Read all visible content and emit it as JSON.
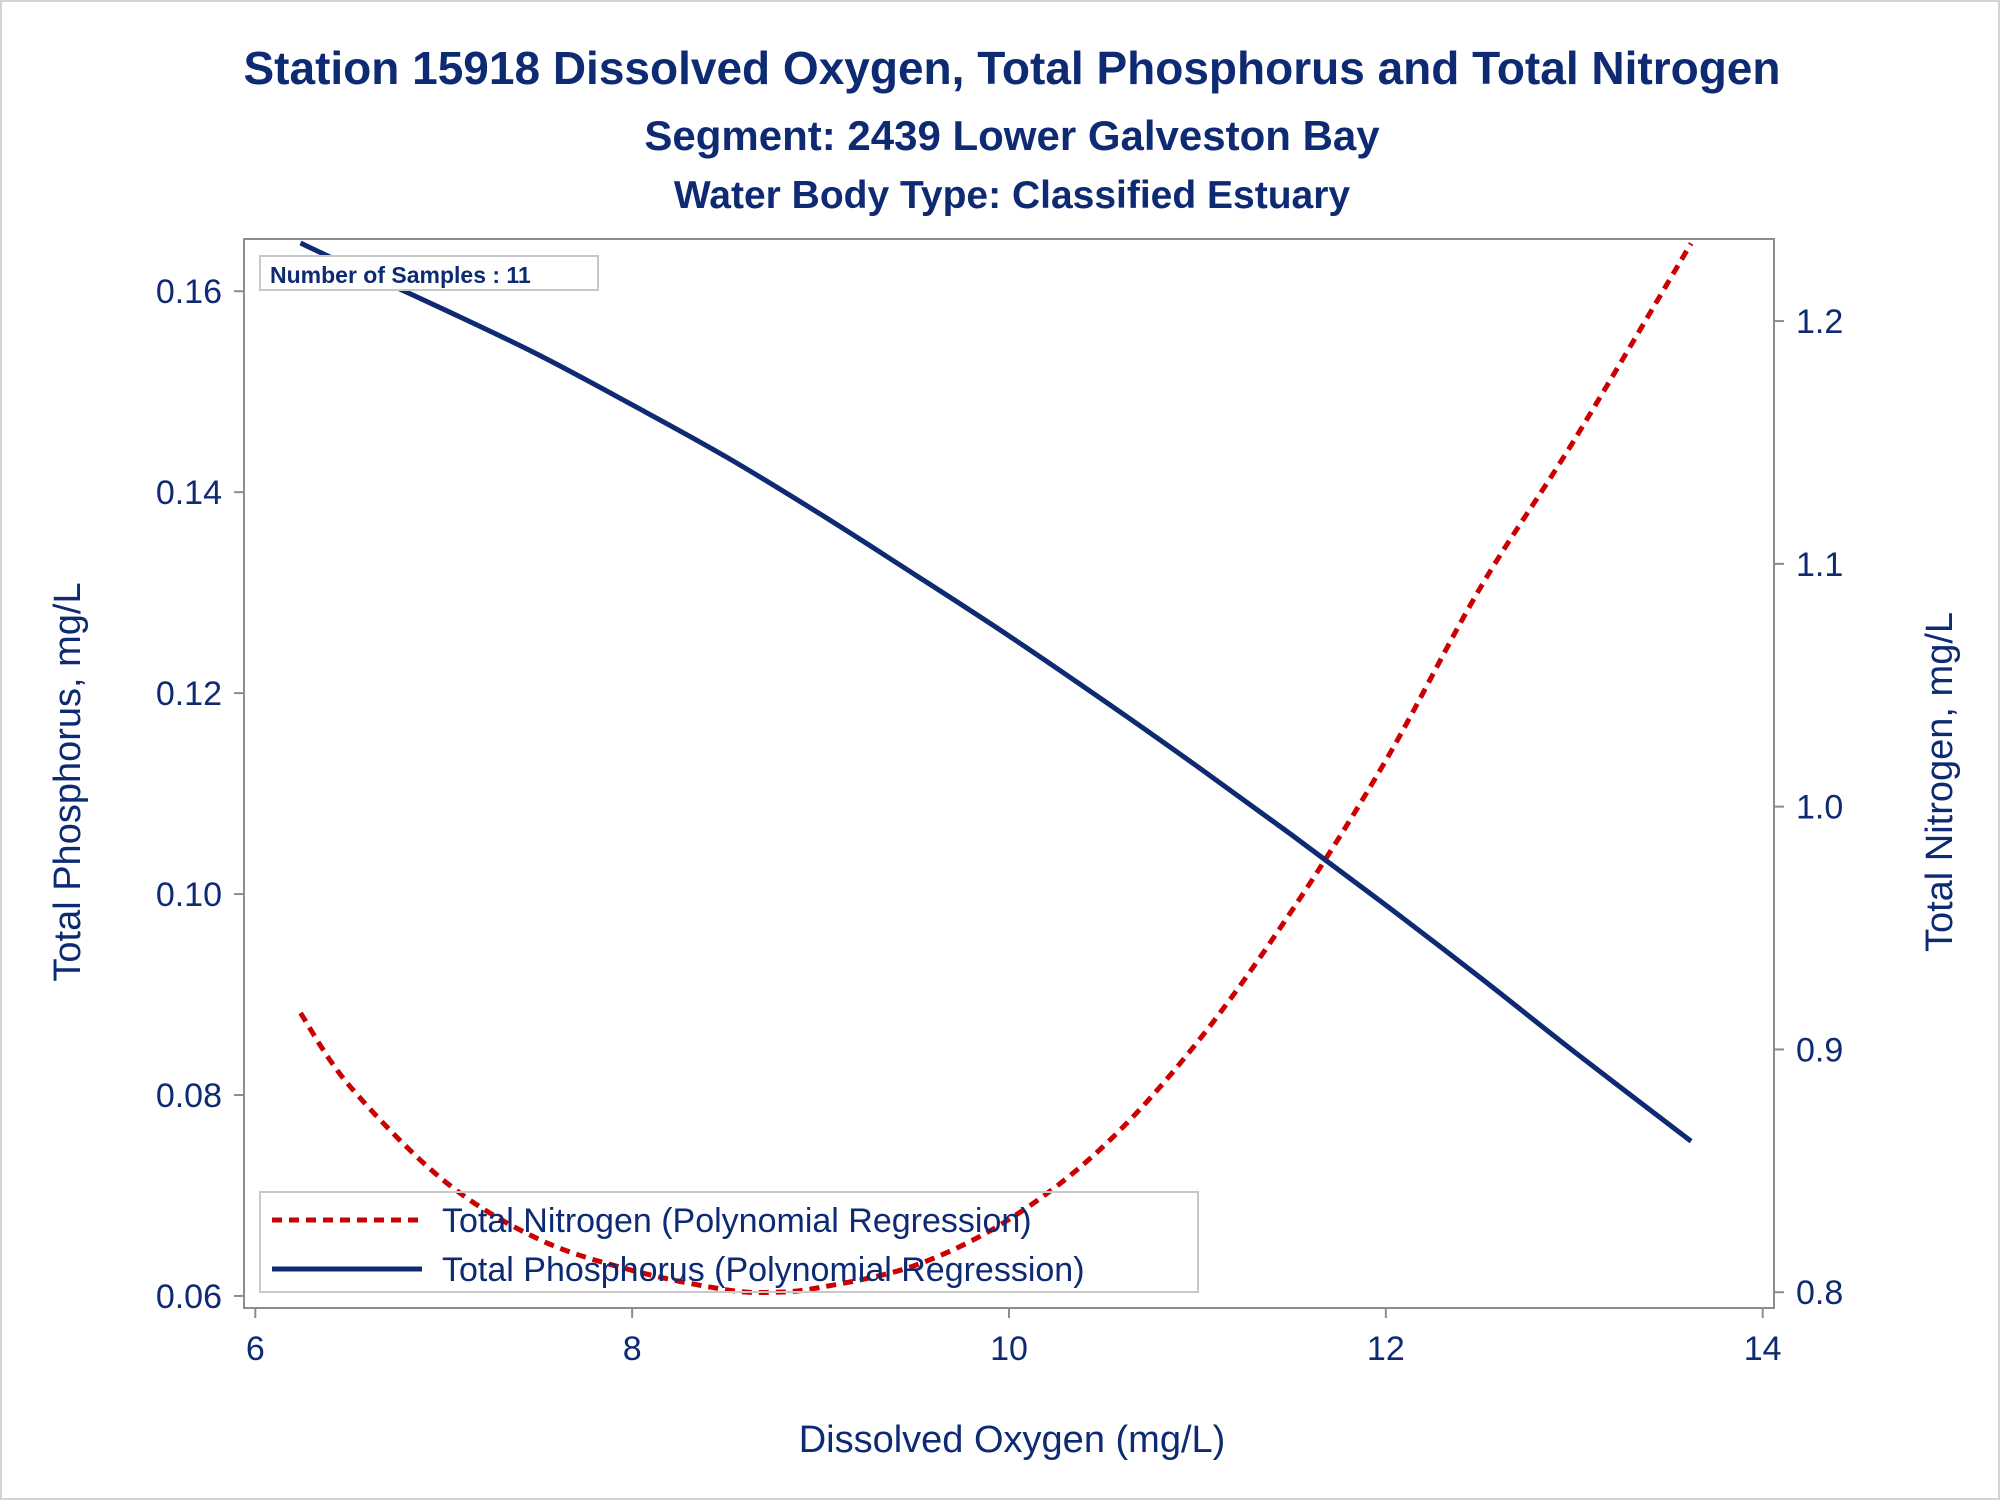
{
  "colors": {
    "navy": "#0d2a73",
    "red": "#cc0000",
    "axis": "#8c8c8c"
  },
  "chart_data": {
    "type": "line",
    "title": "Station 15918  Dissolved Oxygen, Total Phosphorus and Total Nitrogen",
    "subtitle": "Segment: 2439  Lower Galveston Bay",
    "subtitle2": "Water Body Type: Classified Estuary",
    "inset_text": "Number of Samples : 11",
    "xlabel": "Dissolved Oxygen (mg/L)",
    "ylabel": "Total Phosphorus, mg/L",
    "y2label": "Total Nitrogen, mg/L",
    "xlim": [
      5.94,
      14.06
    ],
    "ylim": [
      0.0588,
      0.1652
    ],
    "y2lim": [
      0.7935,
      1.2338
    ],
    "xticks": [
      "6",
      "8",
      "10",
      "12",
      "14"
    ],
    "yticks": [
      "0.06",
      "0.08",
      "0.10",
      "0.12",
      "0.14",
      "0.16"
    ],
    "y2ticks": [
      "0.8",
      "0.9",
      "1.0",
      "1.1",
      "1.2"
    ],
    "grid": false,
    "legend_position": "bottom-left",
    "series": [
      {
        "name": "Total Nitrogen (Polynomial Regression)",
        "axis": "y2",
        "style": "dashed",
        "color": "#cc0000",
        "x": [
          6.24,
          6.5,
          7.0,
          7.5,
          8.0,
          8.5,
          8.75,
          9.0,
          9.5,
          10.0,
          10.5,
          11.0,
          11.5,
          12.0,
          12.5,
          13.0,
          13.62
        ],
        "y": [
          0.915,
          0.885,
          0.846,
          0.822,
          0.809,
          0.801,
          0.8,
          0.802,
          0.811,
          0.83,
          0.86,
          0.903,
          0.957,
          1.019,
          1.09,
          1.151,
          1.232
        ]
      },
      {
        "name": "Total Phosphorus (Polynomial Regression)",
        "axis": "y",
        "style": "solid",
        "color": "#0d2a73",
        "x": [
          6.24,
          6.5,
          7.0,
          7.5,
          8.0,
          8.5,
          9.0,
          9.5,
          10.0,
          10.5,
          11.0,
          11.5,
          12.0,
          12.5,
          13.0,
          13.62
        ],
        "y": [
          0.1648,
          0.1625,
          0.1582,
          0.1537,
          0.1487,
          0.1435,
          0.1378,
          0.1318,
          0.1257,
          0.1193,
          0.1127,
          0.1059,
          0.0989,
          0.0917,
          0.0843,
          0.0754
        ]
      }
    ]
  }
}
